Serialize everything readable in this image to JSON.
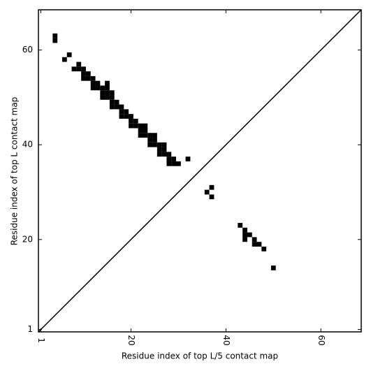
{
  "chart_data": {
    "type": "scatter",
    "marker": "square",
    "color": "#000000",
    "xlabel": "Residue index of top L/5 contact map",
    "ylabel": "Residue index of top L contact map",
    "xlim": [
      0.5,
      68.5
    ],
    "ylim": [
      0.5,
      68.5
    ],
    "xticks": [
      1,
      20,
      40,
      60
    ],
    "yticks": [
      1,
      20,
      40,
      60
    ],
    "diagonal": true,
    "x": [
      4,
      4,
      7,
      6,
      9,
      8,
      9,
      10,
      10,
      11,
      10,
      11,
      12,
      12,
      13,
      15,
      12,
      13,
      14,
      15,
      14,
      15,
      16,
      14,
      15,
      16,
      16,
      17,
      16,
      17,
      18,
      18,
      19,
      18,
      19,
      20,
      20,
      21,
      20,
      21,
      22,
      23,
      22,
      23,
      22,
      23,
      24,
      25,
      24,
      25,
      24,
      25,
      26,
      27,
      26,
      27,
      26,
      27,
      28,
      28,
      29,
      32,
      28,
      29,
      30,
      37,
      36,
      37,
      43,
      44,
      44,
      44,
      45,
      46,
      46,
      47,
      48,
      50
    ],
    "y": [
      63,
      62,
      59,
      58,
      57,
      56,
      56,
      56,
      55,
      55,
      54,
      54,
      54,
      53,
      53,
      53,
      52,
      52,
      52,
      52,
      51,
      51,
      51,
      50,
      50,
      50,
      49,
      49,
      48,
      48,
      48,
      47,
      47,
      46,
      46,
      46,
      45,
      45,
      44,
      44,
      44,
      44,
      43,
      43,
      42,
      42,
      42,
      42,
      41,
      41,
      40,
      40,
      40,
      40,
      39,
      39,
      38,
      38,
      38,
      37,
      37,
      37,
      36,
      36,
      36,
      31,
      30,
      29,
      23,
      22,
      21,
      20,
      21,
      20,
      19,
      19,
      18,
      14
    ]
  }
}
